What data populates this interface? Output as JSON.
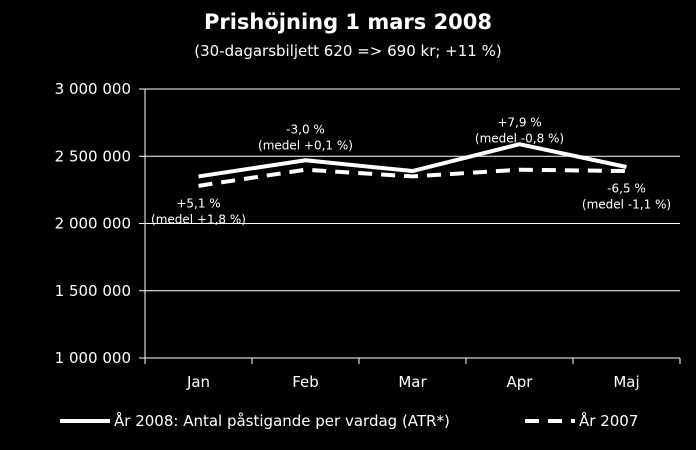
{
  "chart_data": {
    "type": "line",
    "title": "Prishöjning 1 mars 2008",
    "subtitle": "(30-dagarsbiljett 620 => 690 kr; +11 %)",
    "categories": [
      "Jan",
      "Feb",
      "Mar",
      "Apr",
      "Maj"
    ],
    "ylim": [
      1000000,
      3000000
    ],
    "yticks": [
      1000000,
      1500000,
      2000000,
      2500000,
      3000000
    ],
    "ytick_labels": [
      "1 000 000",
      "1 500 000",
      "2 000 000",
      "2 500 000",
      "3 000 000"
    ],
    "grid": true,
    "legend_position": "bottom",
    "series": [
      {
        "name": "År 2008: Antal påstigande per vardag (ATR*)",
        "values": [
          2350000,
          2470000,
          2390000,
          2590000,
          2420000
        ],
        "color": "#ffffff",
        "style": "solid"
      },
      {
        "name": "År 2007",
        "values": [
          2280000,
          2400000,
          2350000,
          2400000,
          2390000
        ],
        "color": "#ffffff",
        "style": "dashed"
      }
    ],
    "annotations": [
      {
        "category": "Jan",
        "value": 2120000,
        "lines": [
          "+5,1 %",
          "(medel +1,8 %)"
        ]
      },
      {
        "category": "Feb",
        "value": 2670000,
        "lines": [
          "-3,0 %",
          "(medel +0,1 %)"
        ]
      },
      {
        "category": "Apr",
        "value": 2720000,
        "lines": [
          "+7,9 %",
          "(medel -0,8 %)"
        ]
      },
      {
        "category": "Maj",
        "value": 2230000,
        "lines": [
          "-6,5 %",
          "(medel -1,1 %)"
        ]
      }
    ]
  }
}
